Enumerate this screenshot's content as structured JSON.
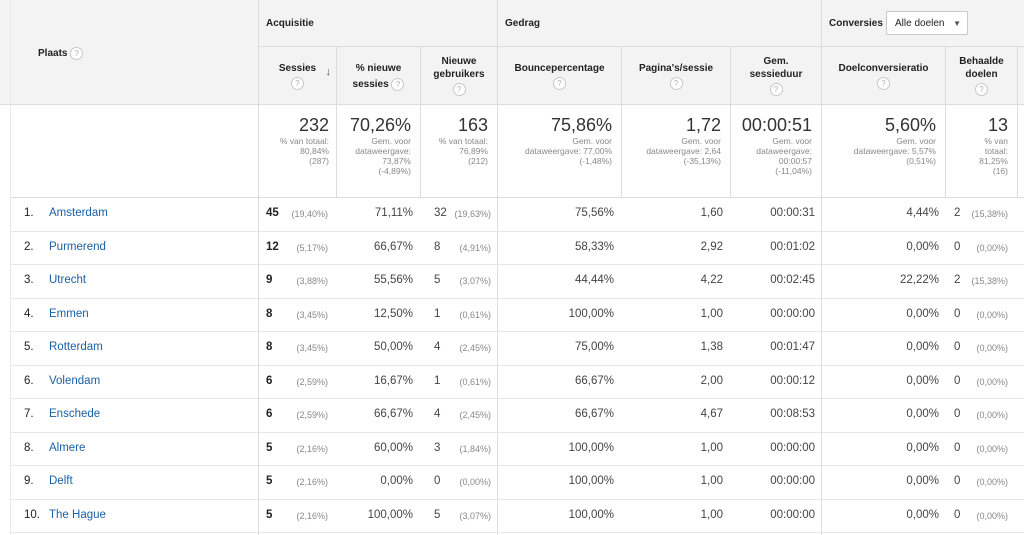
{
  "header": {
    "place_label": "Plaats",
    "groups": {
      "acquisition": "Acquisitie",
      "behavior": "Gedrag",
      "conversions": "Conversies"
    },
    "goal_select": "Alle doelen",
    "columns": {
      "sessions": "Sessies",
      "new_sessions_1": "% nieuwe",
      "new_sessions_2": "sessies",
      "new_users_1": "Nieuwe",
      "new_users_2": "gebruikers",
      "bounce": "Bouncepercentage",
      "pages": "Pagina's/sessie",
      "duration_1": "Gem.",
      "duration_2": "sessieduur",
      "goal_conv": "Doelconversieratio",
      "goals_1": "Behaalde",
      "goals_2": "doelen"
    }
  },
  "totals": {
    "sessions": {
      "main": "232",
      "l1": "% van totaal:",
      "l2": "80,84%",
      "l3": "(287)"
    },
    "new_sessions": {
      "main": "70,26%",
      "l1": "Gem. voor",
      "l2": "dataweergave:",
      "l3": "73,87%",
      "l4": "(-4,89%)"
    },
    "new_users": {
      "main": "163",
      "l1": "% van totaal:",
      "l2": "76,89%",
      "l3": "(212)"
    },
    "bounce": {
      "main": "75,86%",
      "l1": "Gem. voor",
      "l2": "dataweergave: 77,00%",
      "l3": "(-1,48%)"
    },
    "pages": {
      "main": "1,72",
      "l1": "Gem. voor",
      "l2": "dataweergave: 2,64",
      "l3": "(-35,13%)"
    },
    "duration": {
      "main": "00:00:51",
      "l1": "Gem. voor",
      "l2": "dataweergave:",
      "l3": "00:00:57",
      "l4": "(-11,04%)"
    },
    "goal_conv": {
      "main": "5,60%",
      "l1": "Gem. voor",
      "l2": "dataweergave: 5,57%",
      "l3": "(0,51%)"
    },
    "goals": {
      "main": "13",
      "l1": "% van",
      "l2": "totaal:",
      "l3": "81,25%",
      "l4": "(16)"
    }
  },
  "rows": [
    {
      "n": "1.",
      "city": "Amsterdam",
      "s": "45",
      "sp": "(19,40%)",
      "ns": "71,11%",
      "nu": "32",
      "nup": "(19,63%)",
      "b": "75,56%",
      "p": "1,60",
      "d": "00:00:31",
      "gc": "4,44%",
      "g": "2",
      "gp": "(15,38%)"
    },
    {
      "n": "2.",
      "city": "Purmerend",
      "s": "12",
      "sp": "(5,17%)",
      "ns": "66,67%",
      "nu": "8",
      "nup": "(4,91%)",
      "b": "58,33%",
      "p": "2,92",
      "d": "00:01:02",
      "gc": "0,00%",
      "g": "0",
      "gp": "(0,00%)"
    },
    {
      "n": "3.",
      "city": "Utrecht",
      "s": "9",
      "sp": "(3,88%)",
      "ns": "55,56%",
      "nu": "5",
      "nup": "(3,07%)",
      "b": "44,44%",
      "p": "4,22",
      "d": "00:02:45",
      "gc": "22,22%",
      "g": "2",
      "gp": "(15,38%)"
    },
    {
      "n": "4.",
      "city": "Emmen",
      "s": "8",
      "sp": "(3,45%)",
      "ns": "12,50%",
      "nu": "1",
      "nup": "(0,61%)",
      "b": "100,00%",
      "p": "1,00",
      "d": "00:00:00",
      "gc": "0,00%",
      "g": "0",
      "gp": "(0,00%)"
    },
    {
      "n": "5.",
      "city": "Rotterdam",
      "s": "8",
      "sp": "(3,45%)",
      "ns": "50,00%",
      "nu": "4",
      "nup": "(2,45%)",
      "b": "75,00%",
      "p": "1,38",
      "d": "00:01:47",
      "gc": "0,00%",
      "g": "0",
      "gp": "(0,00%)"
    },
    {
      "n": "6.",
      "city": "Volendam",
      "s": "6",
      "sp": "(2,59%)",
      "ns": "16,67%",
      "nu": "1",
      "nup": "(0,61%)",
      "b": "66,67%",
      "p": "2,00",
      "d": "00:00:12",
      "gc": "0,00%",
      "g": "0",
      "gp": "(0,00%)"
    },
    {
      "n": "7.",
      "city": "Enschede",
      "s": "6",
      "sp": "(2,59%)",
      "ns": "66,67%",
      "nu": "4",
      "nup": "(2,45%)",
      "b": "66,67%",
      "p": "4,67",
      "d": "00:08:53",
      "gc": "0,00%",
      "g": "0",
      "gp": "(0,00%)"
    },
    {
      "n": "8.",
      "city": "Almere",
      "s": "5",
      "sp": "(2,16%)",
      "ns": "60,00%",
      "nu": "3",
      "nup": "(1,84%)",
      "b": "100,00%",
      "p": "1,00",
      "d": "00:00:00",
      "gc": "0,00%",
      "g": "0",
      "gp": "(0,00%)"
    },
    {
      "n": "9.",
      "city": "Delft",
      "s": "5",
      "sp": "(2,16%)",
      "ns": "0,00%",
      "nu": "0",
      "nup": "(0,00%)",
      "b": "100,00%",
      "p": "1,00",
      "d": "00:00:00",
      "gc": "0,00%",
      "g": "0",
      "gp": "(0,00%)"
    },
    {
      "n": "10.",
      "city": "The Hague",
      "s": "5",
      "sp": "(2,16%)",
      "ns": "100,00%",
      "nu": "5",
      "nup": "(3,07%)",
      "b": "100,00%",
      "p": "1,00",
      "d": "00:00:00",
      "gc": "0,00%",
      "g": "0",
      "gp": "(0,00%)"
    }
  ]
}
